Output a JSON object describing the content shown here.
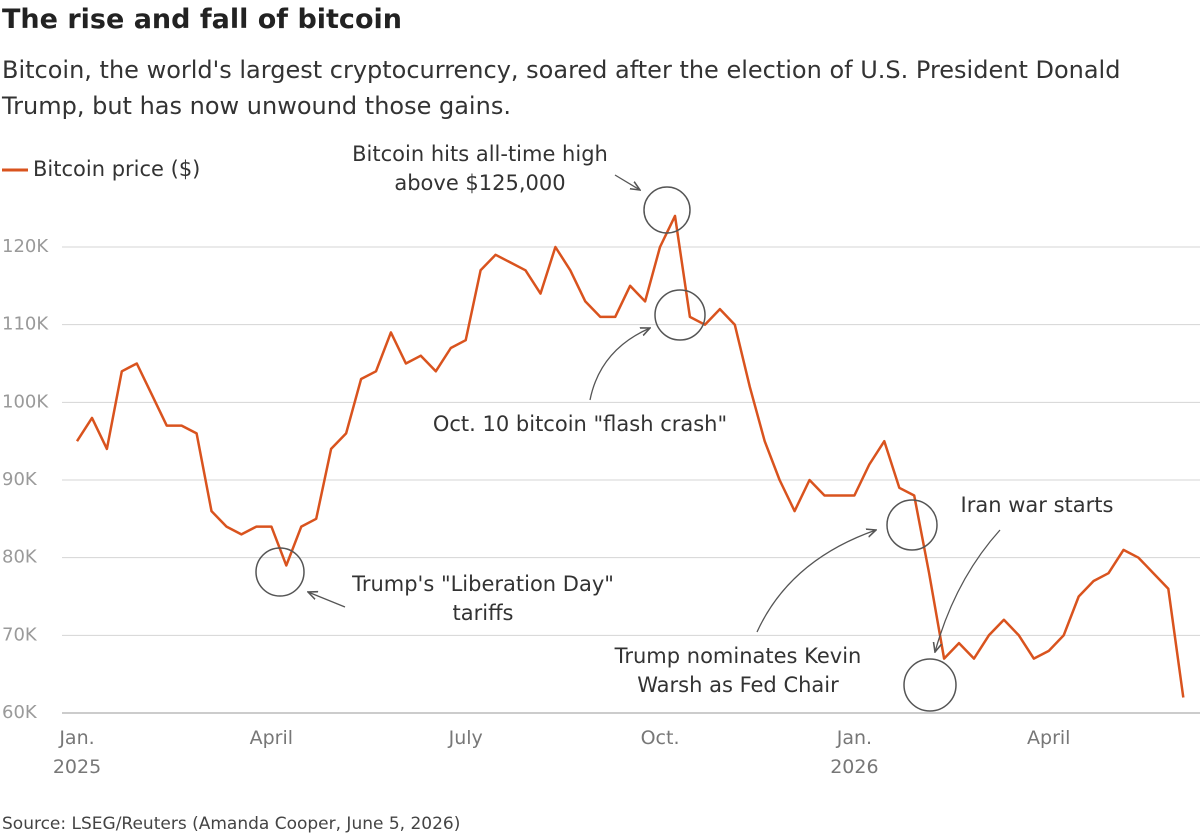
{
  "chart_data": {
    "type": "line",
    "title": "The rise and fall of bitcoin",
    "subtitle": "Bitcoin, the world's largest cryptocurrency, soared after the election of U.S. President Donald Trump, but has now unwound those gains.",
    "source": "Source: LSEG/Reuters (Amanda Cooper, June 5, 2026)",
    "categories": [
      "Jan.\n2025",
      null,
      null,
      null,
      null,
      null,
      null,
      null,
      null,
      null,
      null,
      null,
      null,
      "April",
      null,
      null,
      null,
      null,
      null,
      null,
      null,
      null,
      null,
      null,
      null,
      null,
      "July",
      null,
      null,
      null,
      null,
      null,
      null,
      null,
      null,
      null,
      null,
      null,
      null,
      "Oct.",
      null,
      null,
      null,
      null,
      null,
      null,
      null,
      null,
      null,
      null,
      null,
      null,
      "Jan.\n2026",
      null,
      null,
      null,
      null,
      null,
      null,
      null,
      null,
      null,
      null,
      null,
      null,
      "April",
      null,
      null,
      null,
      null,
      null,
      null,
      null,
      null,
      null
    ],
    "series": [
      {
        "name": "Bitcoin price ($)",
        "color": "#d9531e",
        "values": [
          95000,
          98000,
          94000,
          104000,
          105000,
          101000,
          97000,
          97000,
          96000,
          86000,
          84000,
          83000,
          84000,
          84000,
          79000,
          84000,
          85000,
          94000,
          96000,
          103000,
          104000,
          109000,
          105000,
          106000,
          104000,
          107000,
          108000,
          117000,
          119000,
          118000,
          117000,
          114000,
          120000,
          117000,
          113000,
          111000,
          111000,
          115000,
          113000,
          120000,
          124000,
          111000,
          110000,
          112000,
          110000,
          102000,
          95000,
          90000,
          86000,
          90000,
          88000,
          88000,
          88000,
          92000,
          95000,
          89000,
          88000,
          78000,
          67000,
          69000,
          67000,
          70000,
          72000,
          70000,
          67000,
          68000,
          70000,
          75000,
          77000,
          78000,
          81000,
          80000,
          78000,
          76000,
          62000
        ]
      }
    ],
    "ylim": [
      60000,
      127000
    ],
    "yticks": [
      {
        "value": 60000,
        "label": "60K"
      },
      {
        "value": 70000,
        "label": "70K"
      },
      {
        "value": 80000,
        "label": "80K"
      },
      {
        "value": 90000,
        "label": "90K"
      },
      {
        "value": 100000,
        "label": "100K"
      },
      {
        "value": 110000,
        "label": "110K"
      },
      {
        "value": 120000,
        "label": "120K"
      }
    ],
    "grid": true,
    "legend": "top-left",
    "annotations": [
      {
        "lines": [
          "Bitcoin hits all-time high",
          "above $125,000"
        ]
      },
      {
        "lines": [
          "Oct. 10 bitcoin \"flash crash\""
        ]
      },
      {
        "lines": [
          "Trump's \"Liberation Day\"",
          "tariffs"
        ]
      },
      {
        "lines": [
          "Iran war starts"
        ]
      },
      {
        "lines": [
          "Trump nominates Kevin",
          "Warsh as Fed Chair"
        ]
      }
    ]
  }
}
